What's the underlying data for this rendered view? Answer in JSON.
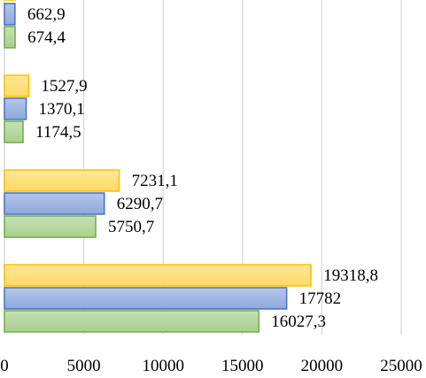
{
  "chart_data": {
    "type": "bar",
    "orientation": "horizontal",
    "xlim": [
      0,
      25000
    ],
    "x_ticks": [
      0,
      5000,
      10000,
      15000,
      20000,
      25000
    ],
    "x_tick_labels": [
      "0",
      "5000",
      "10000",
      "15000",
      "20000",
      "25000"
    ],
    "gridlines": true,
    "groups": [
      {
        "values": [
          674.4,
          662.9,
          null
        ],
        "labels": [
          "674,4",
          "662,9",
          ""
        ]
      },
      {
        "values": [
          1174.5,
          1370.1,
          1527.9
        ],
        "labels": [
          "1174,5",
          "1370,1",
          "1527,9"
        ]
      },
      {
        "values": [
          5750.7,
          6290.7,
          7231.1
        ],
        "labels": [
          "5750,7",
          "6290,7",
          "7231,1"
        ]
      },
      {
        "values": [
          16027.3,
          17782,
          19318.8
        ],
        "labels": [
          "16027,3",
          "17782",
          "19318,8"
        ]
      }
    ],
    "series_colors": [
      {
        "fill": "#a9d18e",
        "stroke": "#70ad47",
        "light": "#c5e0b4"
      },
      {
        "fill": "#8fa8dc",
        "stroke": "#4472c4",
        "light": "#b4c7e7"
      },
      {
        "fill": "#ffd966",
        "stroke": "#ffc000",
        "light": "#ffe699"
      }
    ]
  }
}
